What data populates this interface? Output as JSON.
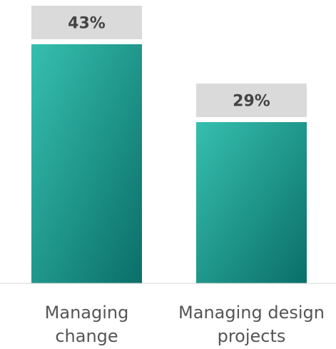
{
  "chart_data": {
    "type": "bar",
    "categories": [
      [
        "Managing",
        "change"
      ],
      [
        "Managing design",
        "projects"
      ]
    ],
    "values": [
      43,
      29
    ],
    "data_labels": [
      "43%",
      "29%"
    ],
    "ylim": [
      0,
      43
    ],
    "grid": false,
    "colors": {
      "bar_top": "#36bfae",
      "bar_bottom": "#0a6f69",
      "label_box": "#dadada",
      "axis": "#d4d4d4"
    }
  }
}
